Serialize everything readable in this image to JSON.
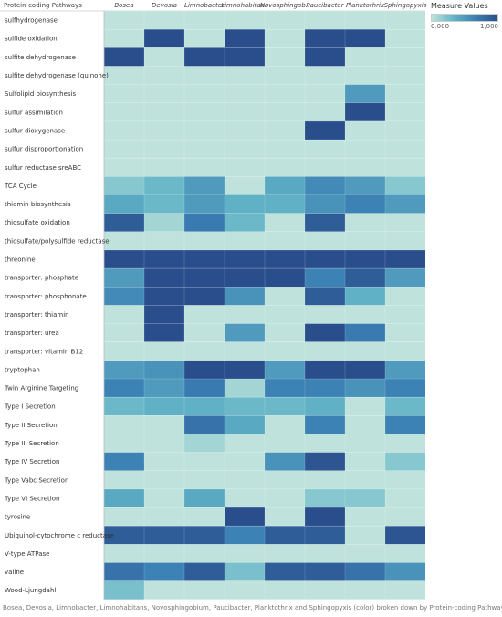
{
  "chart_data": {
    "type": "heatmap",
    "title": "",
    "row_header": "Protein-coding Pathways",
    "columns": [
      "Bosea",
      "Devosia",
      "Limnobacter",
      "Limnohabitans",
      "Novosphingob..",
      "Paucibacter",
      "Planktothrix",
      "Sphingopyxis"
    ],
    "rows": [
      "sulfhydrogenase",
      "sulfide oxidation",
      "sulfite dehydrogenase",
      "sulfite dehydrogenase (quinone)",
      "Sulfolipid biosynthesis",
      "sulfur assimilation",
      "sulfur dioxygenase",
      "sulfur disproportionation",
      "sulfur reductase sreABC",
      "TCA Cycle",
      "thiamin biosynthesis",
      "thiosulfate oxidation",
      "thiosulfate/polysulfide reductase",
      "threonine",
      "transporter: phosphate",
      "transporter: phosphonate",
      "transporter: thiamin",
      "transporter: urea",
      "transporter: vitamin B12",
      "tryptophan",
      "Twin Arginine Targeting",
      "Type I Secretion",
      "Type II Secretion",
      "Type III Secretion",
      "Type IV Secretion",
      "Type Vabc Secretion",
      "Type VI Secretion",
      "tyrosine",
      "Ubiquinol-cytochrome c reductase",
      "V-type ATPase",
      "valine",
      "Wood-Ljungdahl"
    ],
    "values": [
      [
        0,
        0,
        0,
        0,
        0,
        0,
        0,
        0
      ],
      [
        0,
        1000,
        0,
        1000,
        0,
        1000,
        1000,
        0
      ],
      [
        1000,
        0,
        1000,
        1000,
        0,
        1000,
        0,
        0
      ],
      [
        0,
        0,
        0,
        0,
        0,
        0,
        0,
        0
      ],
      [
        0,
        0,
        0,
        0,
        0,
        0,
        500,
        0
      ],
      [
        0,
        0,
        0,
        0,
        0,
        0,
        1000,
        0
      ],
      [
        0,
        0,
        0,
        0,
        0,
        1000,
        0,
        0
      ],
      [
        0,
        0,
        0,
        0,
        0,
        0,
        0,
        0
      ],
      [
        0,
        0,
        0,
        0,
        0,
        0,
        0,
        0
      ],
      [
        200,
        300,
        500,
        0,
        400,
        600,
        500,
        200
      ],
      [
        400,
        300,
        500,
        350,
        350,
        550,
        650,
        500
      ],
      [
        900,
        100,
        700,
        300,
        0,
        900,
        0,
        0
      ],
      [
        0,
        0,
        0,
        0,
        0,
        0,
        0,
        0
      ],
      [
        1000,
        1000,
        1000,
        1000,
        1000,
        1000,
        1000,
        1000
      ],
      [
        500,
        1000,
        1000,
        1000,
        1000,
        650,
        900,
        500
      ],
      [
        600,
        1000,
        1000,
        550,
        0,
        900,
        350,
        0
      ],
      [
        0,
        1000,
        0,
        0,
        0,
        0,
        0,
        0
      ],
      [
        0,
        1000,
        0,
        500,
        0,
        1000,
        700,
        0
      ],
      [
        0,
        0,
        0,
        0,
        0,
        0,
        0,
        0
      ],
      [
        500,
        550,
        1000,
        1000,
        500,
        1000,
        1000,
        500
      ],
      [
        650,
        500,
        700,
        100,
        650,
        650,
        550,
        650
      ],
      [
        300,
        350,
        350,
        300,
        300,
        350,
        0,
        300
      ],
      [
        0,
        0,
        750,
        400,
        0,
        650,
        0,
        650
      ],
      [
        0,
        0,
        100,
        0,
        0,
        0,
        0,
        0
      ],
      [
        650,
        0,
        0,
        0,
        550,
        950,
        0,
        200
      ],
      [
        0,
        0,
        0,
        0,
        0,
        0,
        0,
        0
      ],
      [
        400,
        0,
        400,
        0,
        0,
        200,
        200,
        0
      ],
      [
        0,
        0,
        0,
        1000,
        0,
        1000,
        0,
        0
      ],
      [
        900,
        900,
        900,
        650,
        900,
        900,
        0,
        950
      ],
      [
        0,
        0,
        0,
        0,
        0,
        0,
        0,
        0
      ],
      [
        750,
        650,
        900,
        250,
        900,
        900,
        750,
        550
      ],
      [
        250,
        0,
        0,
        0,
        0,
        0,
        0,
        0
      ]
    ],
    "color_range": [
      0,
      1000
    ],
    "color_stops": [
      "#bfe3dc",
      "#62b4c6",
      "#3b7fb4",
      "#2a4e8c"
    ],
    "grid": true,
    "legend": {
      "title": "Measure Values",
      "min_label": "0.000",
      "max_label": "1,000",
      "placement": "top-right"
    },
    "caption": "Bosea, Devosia, Limnobacter, Limnohabitans, Novosphingobium, Paucibacter, Planktothrix and Sphingopyxis (color) broken down by Protein-coding Pathways."
  }
}
